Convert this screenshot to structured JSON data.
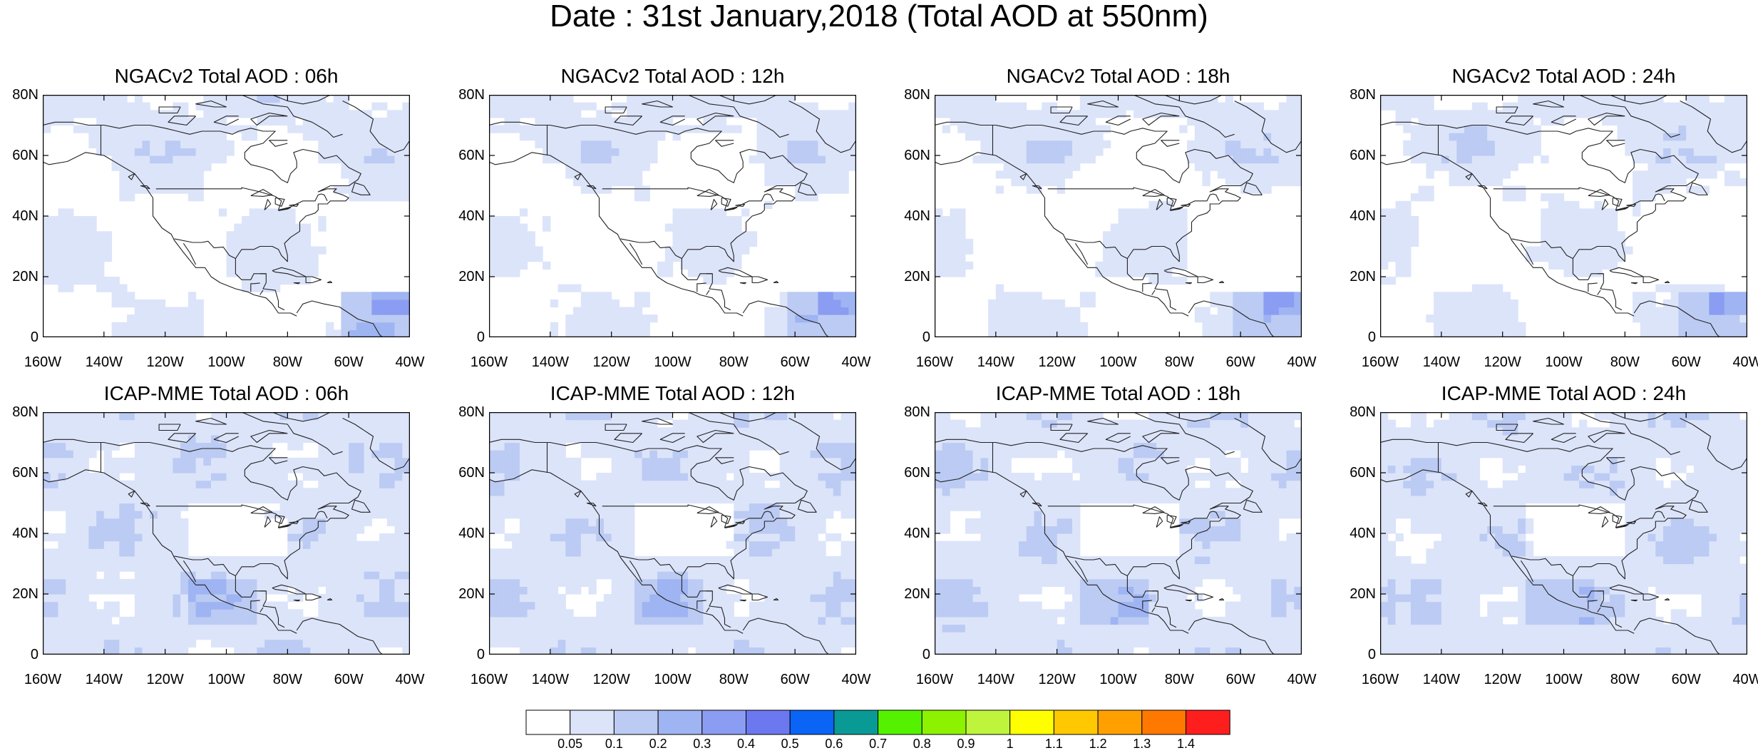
{
  "title": "Date : 31st January,2018 (Total AOD at 550nm)",
  "panels": [
    {
      "title": "NGACv2 Total AOD : 06h",
      "model": "NGACv2",
      "lead": "06h",
      "level": 1
    },
    {
      "title": "NGACv2 Total AOD : 12h",
      "model": "NGACv2",
      "lead": "12h",
      "level": 1
    },
    {
      "title": "NGACv2 Total AOD : 18h",
      "model": "NGACv2",
      "lead": "18h",
      "level": 1
    },
    {
      "title": "NGACv2 Total AOD : 24h",
      "model": "NGACv2",
      "lead": "24h",
      "level": 1
    },
    {
      "title": "ICAP-MME Total AOD : 06h",
      "model": "ICAP-MME",
      "lead": "06h",
      "level": 2
    },
    {
      "title": "ICAP-MME Total AOD : 12h",
      "model": "ICAP-MME",
      "lead": "12h",
      "level": 2
    },
    {
      "title": "ICAP-MME Total AOD : 18h",
      "model": "ICAP-MME",
      "lead": "18h",
      "level": 2
    },
    {
      "title": "ICAP-MME Total AOD : 24h",
      "model": "ICAP-MME",
      "lead": "24h",
      "level": 2
    }
  ],
  "lat_ticks": [
    "80N",
    "60N",
    "40N",
    "20N",
    "0"
  ],
  "lon_ticks": [
    "160W",
    "140W",
    "120W",
    "100W",
    "80W",
    "60W",
    "40W"
  ],
  "colorbar": {
    "labels": [
      "0.05",
      "0.1",
      "0.2",
      "0.3",
      "0.4",
      "0.5",
      "0.6",
      "0.7",
      "0.8",
      "0.9",
      "1",
      "1.1",
      "1.2",
      "1.3",
      "1.4"
    ],
    "colors": [
      "#ffffff",
      "#dce4fa",
      "#bccbf3",
      "#9fb4f2",
      "#8b9df2",
      "#6b78f0",
      "#0a64f5",
      "#0a9a96",
      "#55f200",
      "#8cf200",
      "#bef53c",
      "#ffff00",
      "#ffc800",
      "#ffa000",
      "#ff7800",
      "#ff1e1e"
    ]
  },
  "coastline_color": "#222222"
}
